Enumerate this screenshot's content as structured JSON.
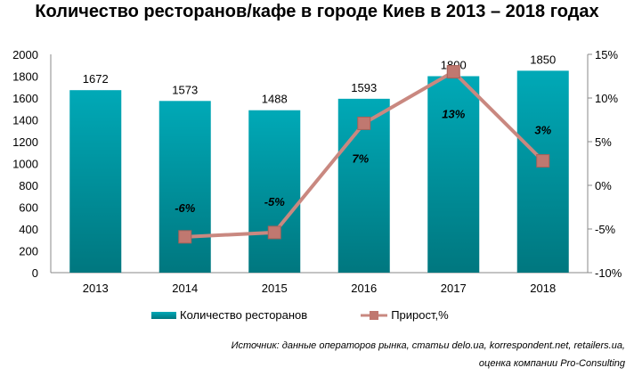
{
  "chart_data": {
    "type": "bar+line",
    "title": "Количество ресторанов/кафе в городе Киев в 2013 – 2018 годах",
    "categories": [
      "2013",
      "2014",
      "2015",
      "2016",
      "2017",
      "2018"
    ],
    "series": [
      {
        "name": "Количество ресторанов",
        "type": "bar",
        "axis": "left",
        "values": [
          1672,
          1573,
          1488,
          1593,
          1800,
          1850
        ],
        "labels": [
          "1672",
          "1573",
          "1488",
          "1593",
          "1800",
          "1850"
        ]
      },
      {
        "name": "Прирост,%",
        "type": "line",
        "axis": "right",
        "values": [
          null,
          -5.9,
          -5.4,
          7.1,
          13.0,
          2.8
        ],
        "labels": [
          "",
          "-6%",
          "-5%",
          "7%",
          "13%",
          "3%"
        ]
      }
    ],
    "left_axis": {
      "range": [
        0,
        2000
      ],
      "ticks": [
        "0",
        "200",
        "400",
        "600",
        "800",
        "1000",
        "1200",
        "1400",
        "1600",
        "1800",
        "2000"
      ]
    },
    "right_axis": {
      "range": [
        -10,
        15
      ],
      "ticks": [
        "-10%",
        "-5%",
        "0%",
        "5%",
        "10%",
        "15%"
      ]
    },
    "legend": "bottom",
    "colors": {
      "bar_top": "#00a9b7",
      "bar_bottom": "#00777f",
      "line": "#c98880",
      "marker": "#c07870"
    }
  },
  "source_line1": "Источник: данные операторов рынка, статьи delo.ua, korrespondent.net, retailers.ua,",
  "source_line2": "оценка компании Pro-Consulting"
}
